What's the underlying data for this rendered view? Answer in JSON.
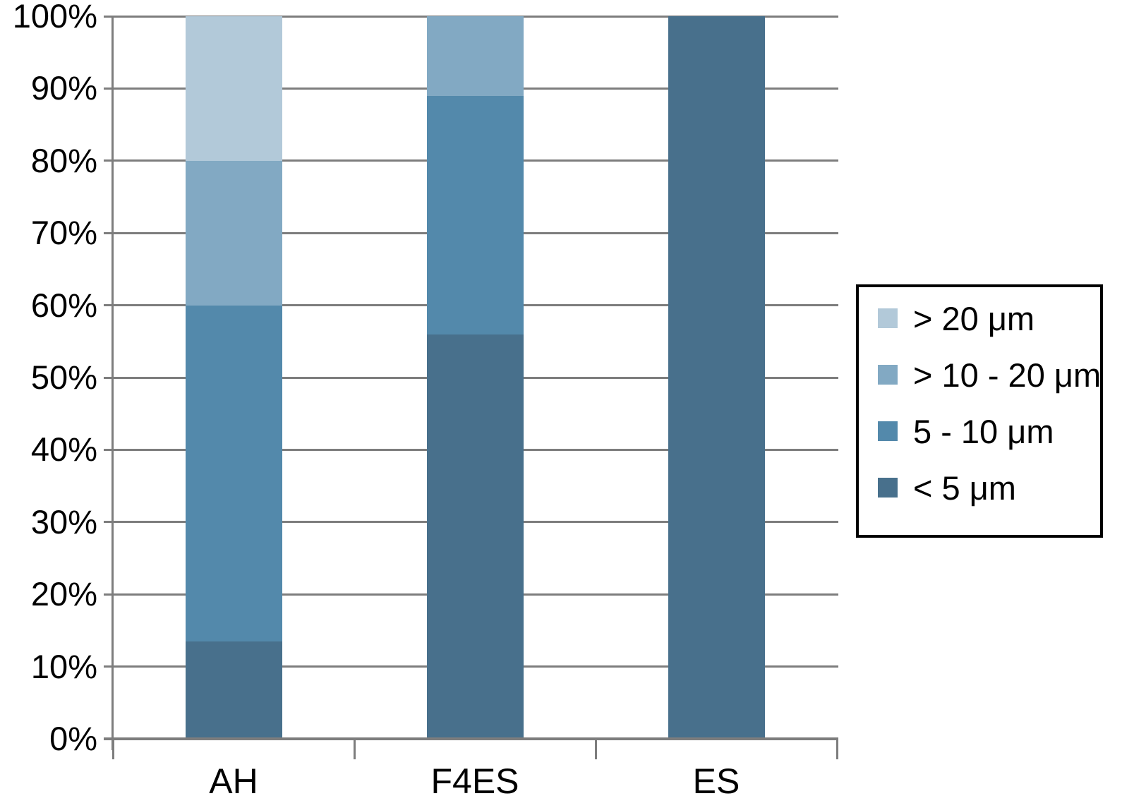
{
  "chart_data": {
    "type": "bar",
    "subtype": "stacked-100-percent",
    "title": "",
    "xlabel": "",
    "ylabel": "",
    "categories": [
      "AH",
      "F4ES",
      "ES"
    ],
    "series": [
      {
        "name": "> 20 μm",
        "color": "#b2c9d9",
        "values": [
          20,
          0,
          0
        ]
      },
      {
        "name": "> 10 - 20 μm",
        "color": "#82a9c3",
        "values": [
          20,
          11,
          0
        ]
      },
      {
        "name": "5 - 10 μm",
        "color": "#5389ab",
        "values": [
          46.5,
          33,
          0
        ]
      },
      {
        "name": "< 5 μm",
        "color": "#48708c",
        "values": [
          13.5,
          56,
          100
        ]
      }
    ],
    "y_ticks": [
      "100%",
      "90%",
      "80%",
      "70%",
      "60%",
      "50%",
      "40%",
      "30%",
      "20%",
      "10%",
      "0%"
    ],
    "ylim": [
      0,
      100
    ],
    "grid": true,
    "gridline_color": "#7d7d7d",
    "legend_position": "right"
  }
}
